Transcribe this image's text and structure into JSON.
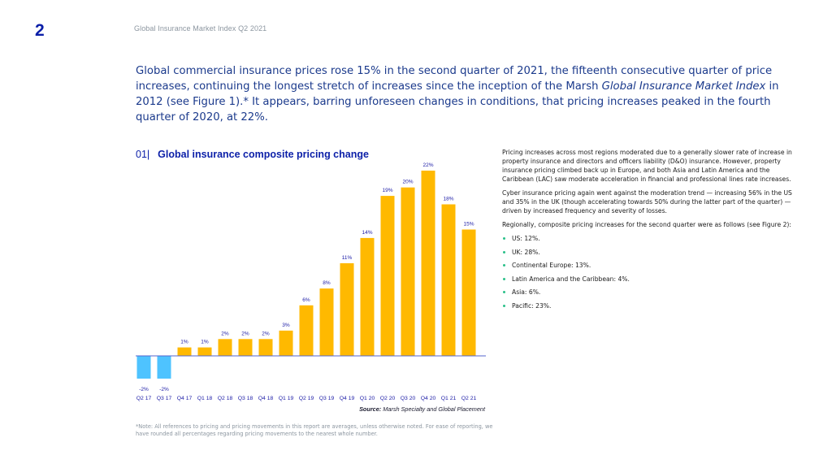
{
  "header": {
    "page_number": "2",
    "running_title": "Global Insurance Market Index Q2 2021"
  },
  "intro": {
    "part1": "Global commercial insurance prices rose 15% in the second quarter of 2021, the fifteenth consecutive quarter of price increases, continuing the longest stretch of increases since the inception of the Marsh ",
    "italic1": "Global Insurance Market Index",
    "part2": " in 2012 (see Figure 1).* It appears, barring unforeseen changes in conditions, that pricing increases peaked in the fourth quarter of 2020, at 22%."
  },
  "figure": {
    "number": "01|",
    "title": "Global insurance composite pricing change",
    "source_label": "Source:",
    "source_text": " Marsh Specialty and Global Placement"
  },
  "chart_data": {
    "type": "bar",
    "title": "Global insurance composite pricing change",
    "xlabel": "",
    "ylabel": "",
    "categories": [
      "Q2 17",
      "Q3 17",
      "Q4 17",
      "Q1 18",
      "Q2 18",
      "Q3 18",
      "Q4 18",
      "Q1 19",
      "Q2 19",
      "Q3 19",
      "Q4 19",
      "Q1 20",
      "Q2 20",
      "Q3 20",
      "Q4 20",
      "Q1 21",
      "Q2 21"
    ],
    "values": [
      -2,
      -2,
      1,
      1,
      2,
      2,
      2,
      3,
      6,
      8,
      11,
      14,
      19,
      20,
      22,
      18,
      15
    ],
    "data_labels": [
      "-2%",
      "-2%",
      "1%",
      "1%",
      "2%",
      "2%",
      "2%",
      "3%",
      "6%",
      "8%",
      "11%",
      "14%",
      "19%",
      "20%",
      "22%",
      "18%",
      "15%"
    ],
    "ylim": [
      -2.6,
      22
    ],
    "grid": false,
    "legend": "none",
    "colors": {
      "positive": "#ffb900",
      "negative": "#4ec3ff",
      "baseline": "#5566cc",
      "label": "#1a1aa6"
    }
  },
  "sidebar": {
    "paragraphs": [
      "Pricing increases across most regions moderated due to a generally slower rate of increase in property insurance and directors and officers liability (D&O) insurance. However, property insurance pricing climbed back up in Europe, and both Asia and Latin America and the Caribbean (LAC) saw moderate acceleration in financial and professional lines rate increases.",
      "Cyber insurance pricing again went against the moderation trend — increasing 56% in the US and 35% in the UK (though accelerating towards 50% during the latter part of the quarter) — driven by increased frequency and severity of losses.",
      "Regionally, composite pricing increases for the second quarter were as follows (see Figure 2):"
    ],
    "bullets": [
      "US: 12%.",
      "UK: 28%.",
      "Continental Europe: 13%.",
      "Latin America and the Caribbean: 4%.",
      "Asia: 6%.",
      "Pacific: 23%."
    ]
  },
  "footnote": "*Note: All references to pricing and pricing movements in this report are averages, unless otherwise noted. For ease of reporting, we have rounded all percentages regarding pricing movements to the nearest whole number."
}
